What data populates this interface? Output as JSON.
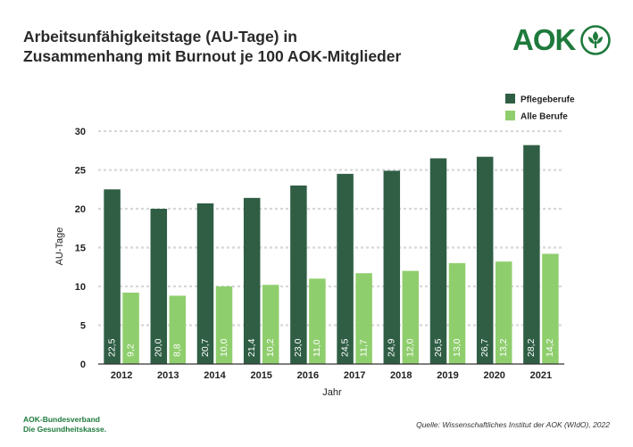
{
  "header": {
    "title_line1": "Arbeitsunfähigkeitstage (AU-Tage) in",
    "title_line2": "Zusammenhang mit Burnout je 100 AOK-Mitglieder"
  },
  "logo": {
    "text": "AOK",
    "mark_icon": "aok-tree-icon"
  },
  "footer": {
    "org_line1": "AOK-Bundesverband",
    "org_line2": "Die Gesundheitskasse.",
    "source": "Quelle: Wissenschaftliches Institut der AOK (WIdO), 2022"
  },
  "colors": {
    "pflege": "#2f5e45",
    "alle": "#8fce6d",
    "grid": "#d7d7d7",
    "brand": "#1e7a3c"
  },
  "chart_data": {
    "type": "bar",
    "title": "Arbeitsunfähigkeitstage (AU-Tage) in Zusammenhang mit Burnout je 100 AOK-Mitglieder",
    "xlabel": "Jahr",
    "ylabel": "AU-Tage",
    "ylim": [
      0,
      30
    ],
    "yticks": [
      0,
      5,
      10,
      15,
      20,
      25,
      30
    ],
    "categories": [
      "2012",
      "2013",
      "2014",
      "2015",
      "2016",
      "2017",
      "2018",
      "2019",
      "2020",
      "2021"
    ],
    "series": [
      {
        "name": "Pflegeberufe",
        "values": [
          22.5,
          20.0,
          20.7,
          21.4,
          23.0,
          24.5,
          24.9,
          26.5,
          26.7,
          28.2
        ],
        "labels": [
          "22,5",
          "20,0",
          "20,7",
          "21,4",
          "23,0",
          "24,5",
          "24,9",
          "26,5",
          "26,7",
          "28,2"
        ]
      },
      {
        "name": "Alle Berufe",
        "values": [
          9.2,
          8.8,
          10.0,
          10.2,
          11.0,
          11.7,
          12.0,
          13.0,
          13.2,
          14.2
        ],
        "labels": [
          "9,2",
          "8,8",
          "10,0",
          "10,2",
          "11,0",
          "11,7",
          "12,0",
          "13,0",
          "13,2",
          "14,2"
        ]
      }
    ],
    "legend_position": "top-right",
    "grid": true
  }
}
